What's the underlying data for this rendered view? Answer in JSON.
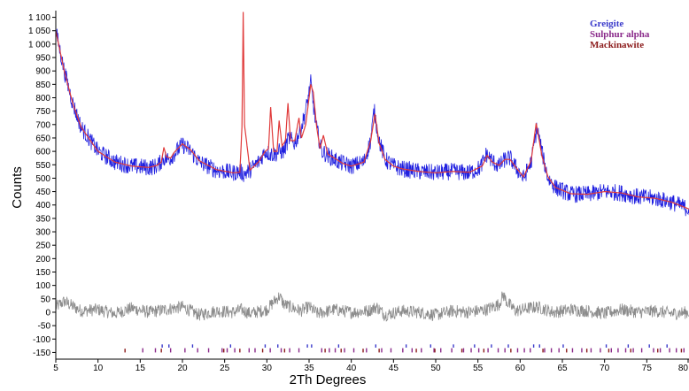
{
  "chart_data": {
    "type": "line",
    "title": "",
    "xlabel": "2Th Degrees",
    "ylabel": "Counts",
    "xlim": [
      5,
      80
    ],
    "ylim": [
      -175,
      1125
    ],
    "x_ticks": [
      "5",
      "10",
      "15",
      "20",
      "25",
      "30",
      "35",
      "40",
      "45",
      "50",
      "55",
      "60",
      "65",
      "70",
      "75",
      "80"
    ],
    "y_ticks": [
      "1 100",
      "1 050",
      "1 000",
      "950",
      "900",
      "850",
      "800",
      "750",
      "700",
      "650",
      "600",
      "550",
      "500",
      "450",
      "400",
      "350",
      "300",
      "250",
      "200",
      "150",
      "100",
      "50",
      "0",
      "-50",
      "-100",
      "-150"
    ],
    "legend": {
      "position": "top-right",
      "entries": [
        {
          "name": "Greigite",
          "color": "#3a3acb"
        },
        {
          "name": "Sulphur alpha",
          "color": "#8a2a8a"
        },
        {
          "name": "Mackinawite",
          "color": "#8b1a1a"
        }
      ]
    },
    "series": [
      {
        "role": "observed",
        "color": "#1f1fe0",
        "x": [
          5,
          6,
          7,
          8,
          10,
          12,
          14,
          16,
          17,
          17.8,
          18.4,
          19,
          20,
          21,
          22,
          24,
          26,
          26.8,
          27.3,
          28,
          29,
          29.8,
          30.4,
          31,
          31.5,
          32,
          32.6,
          33.3,
          34,
          34.6,
          35.2,
          35.8,
          36.5,
          37.5,
          38.5,
          40,
          41.5,
          42.3,
          42.7,
          43.3,
          44,
          45,
          46,
          48,
          50,
          52,
          54,
          55.3,
          56,
          56.8,
          57.5,
          58.2,
          58.8,
          59.5,
          60.4,
          61.3,
          62,
          62.7,
          63.3,
          64.2,
          66,
          68,
          70,
          72,
          74,
          76,
          78,
          80
        ],
        "y": [
          1050,
          900,
          780,
          690,
          600,
          560,
          545,
          540,
          545,
          575,
          570,
          590,
          625,
          600,
          560,
          530,
          520,
          525,
          515,
          530,
          560,
          600,
          590,
          590,
          600,
          600,
          650,
          630,
          680,
          750,
          855,
          700,
          600,
          580,
          560,
          545,
          560,
          640,
          755,
          640,
          570,
          545,
          535,
          525,
          520,
          525,
          520,
          540,
          590,
          560,
          545,
          570,
          575,
          540,
          500,
          560,
          690,
          580,
          500,
          465,
          440,
          440,
          450,
          445,
          430,
          425,
          410,
          385
        ]
      },
      {
        "role": "calculated",
        "color": "#e03a3a",
        "x": [
          5,
          6,
          7,
          8,
          10,
          12,
          14,
          16,
          17,
          17.5,
          17.8,
          18.1,
          18.6,
          19,
          20,
          21,
          22,
          24,
          26,
          26.8,
          27.05,
          27.2,
          27.35,
          28,
          29,
          29.8,
          30.2,
          30.45,
          30.8,
          31.2,
          31.45,
          31.8,
          32.2,
          32.5,
          32.8,
          33.3,
          33.8,
          34.1,
          34.6,
          35.0,
          35.2,
          35.5,
          35.9,
          36.3,
          36.7,
          37.2,
          38,
          39,
          40,
          41.5,
          42.3,
          42.8,
          43.3,
          44,
          45,
          46,
          48,
          50,
          52,
          54,
          55.5,
          56.1,
          56.7,
          57.5,
          58.2,
          58.8,
          59.5,
          60.4,
          61.3,
          61.9,
          62.6,
          63.3,
          64.2,
          66,
          68,
          70,
          72,
          74,
          76,
          78,
          80
        ],
        "y": [
          1050,
          900,
          780,
          690,
          600,
          560,
          545,
          540,
          548,
          560,
          615,
          580,
          575,
          595,
          628,
          605,
          565,
          532,
          520,
          522,
          690,
          1120,
          700,
          530,
          560,
          600,
          610,
          765,
          600,
          600,
          715,
          620,
          640,
          780,
          640,
          640,
          725,
          650,
          700,
          800,
          850,
          820,
          690,
          610,
          660,
          590,
          575,
          555,
          545,
          560,
          640,
          740,
          630,
          570,
          545,
          535,
          525,
          520,
          525,
          522,
          545,
          585,
          560,
          548,
          570,
          570,
          540,
          505,
          565,
          705,
          580,
          505,
          465,
          442,
          440,
          450,
          445,
          430,
          425,
          410,
          385
        ]
      },
      {
        "role": "difference",
        "color": "#8c8c8c",
        "x": [
          5,
          6,
          8,
          10,
          12,
          14,
          16,
          18,
          20,
          22,
          24,
          26,
          27,
          28,
          30,
          31,
          31.5,
          32,
          34,
          35,
          36,
          38,
          40,
          42,
          43,
          44,
          46,
          48,
          50,
          52,
          54,
          56,
          57.5,
          58,
          58.5,
          59.5,
          61,
          62,
          64,
          66,
          68,
          70,
          72,
          74,
          76,
          78,
          80
        ],
        "y": [
          20,
          40,
          5,
          10,
          -5,
          15,
          0,
          10,
          20,
          -10,
          5,
          0,
          10,
          -5,
          10,
          45,
          60,
          30,
          5,
          20,
          -5,
          10,
          0,
          5,
          20,
          -10,
          5,
          0,
          -10,
          5,
          0,
          10,
          30,
          65,
          35,
          5,
          15,
          20,
          0,
          10,
          5,
          -5,
          10,
          0,
          5,
          -5,
          0
        ]
      }
    ],
    "reflection_markers": [
      {
        "phase": "Greigite",
        "color": "#3a3acb",
        "x": [
          17.6,
          18.4,
          21.2,
          25.7,
          29.8,
          31.3,
          34.8,
          35.3,
          38.5,
          42.9,
          46.5,
          49.4,
          52.1,
          54.6,
          56.6,
          58.6,
          61.6,
          62.3,
          65.1,
          70.2,
          72.8,
          75.3,
          77.4
        ]
      },
      {
        "phase": "Sulphur alpha",
        "color": "#8a2a8a",
        "x": [
          15.3,
          16.8,
          18.6,
          20.3,
          21.8,
          23.1,
          24.7,
          25.3,
          26.2,
          27.9,
          28.6,
          30.4,
          31.7,
          32.7,
          33.8,
          36.5,
          37.4,
          38.1,
          39.2,
          40.3,
          41.8,
          43.6,
          44.7,
          46.1,
          47.2,
          48.3,
          49.8,
          50.6,
          51.9,
          53.3,
          54.2,
          55.1,
          56.2,
          57.4,
          58.2,
          59.7,
          60.5,
          61.2,
          62.9,
          63.7,
          64.6,
          66.2,
          67.3,
          68.4,
          69.5,
          70.8,
          71.6,
          72.5,
          73.4,
          74.4,
          75.8,
          76.6,
          77.7,
          78.5,
          79.4
        ]
      },
      {
        "phase": "Mackinawite",
        "color": "#8b1a1a",
        "x": [
          13.2,
          17.5,
          24.9,
          26.8,
          29.5,
          32.1,
          36.9,
          38.8,
          41.4,
          43.3,
          47.7,
          49.9,
          53.1,
          55.7,
          58.9,
          62.7,
          65.5,
          67.9,
          70.5,
          73.1,
          76.3,
          79.1
        ]
      }
    ]
  }
}
